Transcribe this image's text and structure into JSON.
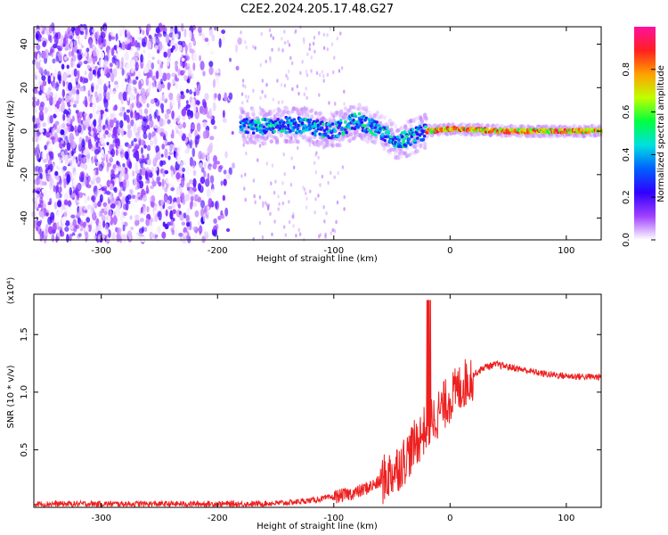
{
  "title": "C2E2.2024.205.17.48.G27",
  "chart_data": [
    {
      "type": "heatmap",
      "xlabel": "Height of straight line (km)",
      "ylabel": "Frequency (Hz)",
      "xlim": [
        -358,
        130
      ],
      "ylim": [
        -50,
        48
      ],
      "xticks": [
        -300,
        -200,
        -100,
        0,
        100
      ],
      "yticks": [
        -40,
        -20,
        0,
        20,
        40
      ],
      "colorbar": {
        "label": "Normalized spectral amplitude",
        "range": [
          0,
          1
        ],
        "ticks": [
          0.0,
          0.2,
          0.4,
          0.6,
          0.8
        ],
        "colormap": [
          "#ffffff",
          "#a040ff",
          "#3000ff",
          "#0060ff",
          "#00e0e0",
          "#00ff40",
          "#c0ff00",
          "#ffa000",
          "#ff2020",
          "#ff10a0"
        ]
      },
      "description_of_signal": {
        "noise_region_x": [
          -358,
          -180
        ],
        "noise_region_y": [
          -50,
          48
        ],
        "signal_track": [
          {
            "x": -180,
            "y": 3
          },
          {
            "x": -160,
            "y": 2
          },
          {
            "x": -140,
            "y": 3
          },
          {
            "x": -120,
            "y": 2
          },
          {
            "x": -100,
            "y": 0
          },
          {
            "x": -80,
            "y": 5
          },
          {
            "x": -60,
            "y": 0
          },
          {
            "x": -45,
            "y": -5
          },
          {
            "x": -35,
            "y": -3
          },
          {
            "x": -20,
            "y": 0
          },
          {
            "x": 0,
            "y": 1
          },
          {
            "x": 50,
            "y": 0
          },
          {
            "x": 100,
            "y": 0
          },
          {
            "x": 130,
            "y": 0
          }
        ]
      }
    },
    {
      "type": "line",
      "xlabel": "Height of straight line (km)",
      "ylabel": "SNR (10 * v/v)",
      "yunit": "(x10⁴)",
      "xlim": [
        -358,
        130
      ],
      "ylim": [
        0,
        1.85
      ],
      "xticks": [
        -300,
        -200,
        -100,
        0,
        100
      ],
      "yticks": [
        0.5,
        1.0,
        1.5
      ],
      "color": "#ee2020",
      "series": [
        {
          "x": [
            -358,
            -300,
            -250,
            -200,
            -170,
            -140,
            -120,
            -100,
            -80,
            -60,
            -50,
            -40,
            -30,
            -20,
            -10,
            0,
            10,
            20,
            30,
            40,
            60,
            80,
            100,
            130
          ],
          "values": [
            0.03,
            0.03,
            0.03,
            0.03,
            0.03,
            0.04,
            0.06,
            0.09,
            0.13,
            0.22,
            0.3,
            0.4,
            0.55,
            0.7,
            0.82,
            0.95,
            1.05,
            1.15,
            1.22,
            1.24,
            1.2,
            1.16,
            1.14,
            1.13
          ]
        }
      ]
    }
  ]
}
